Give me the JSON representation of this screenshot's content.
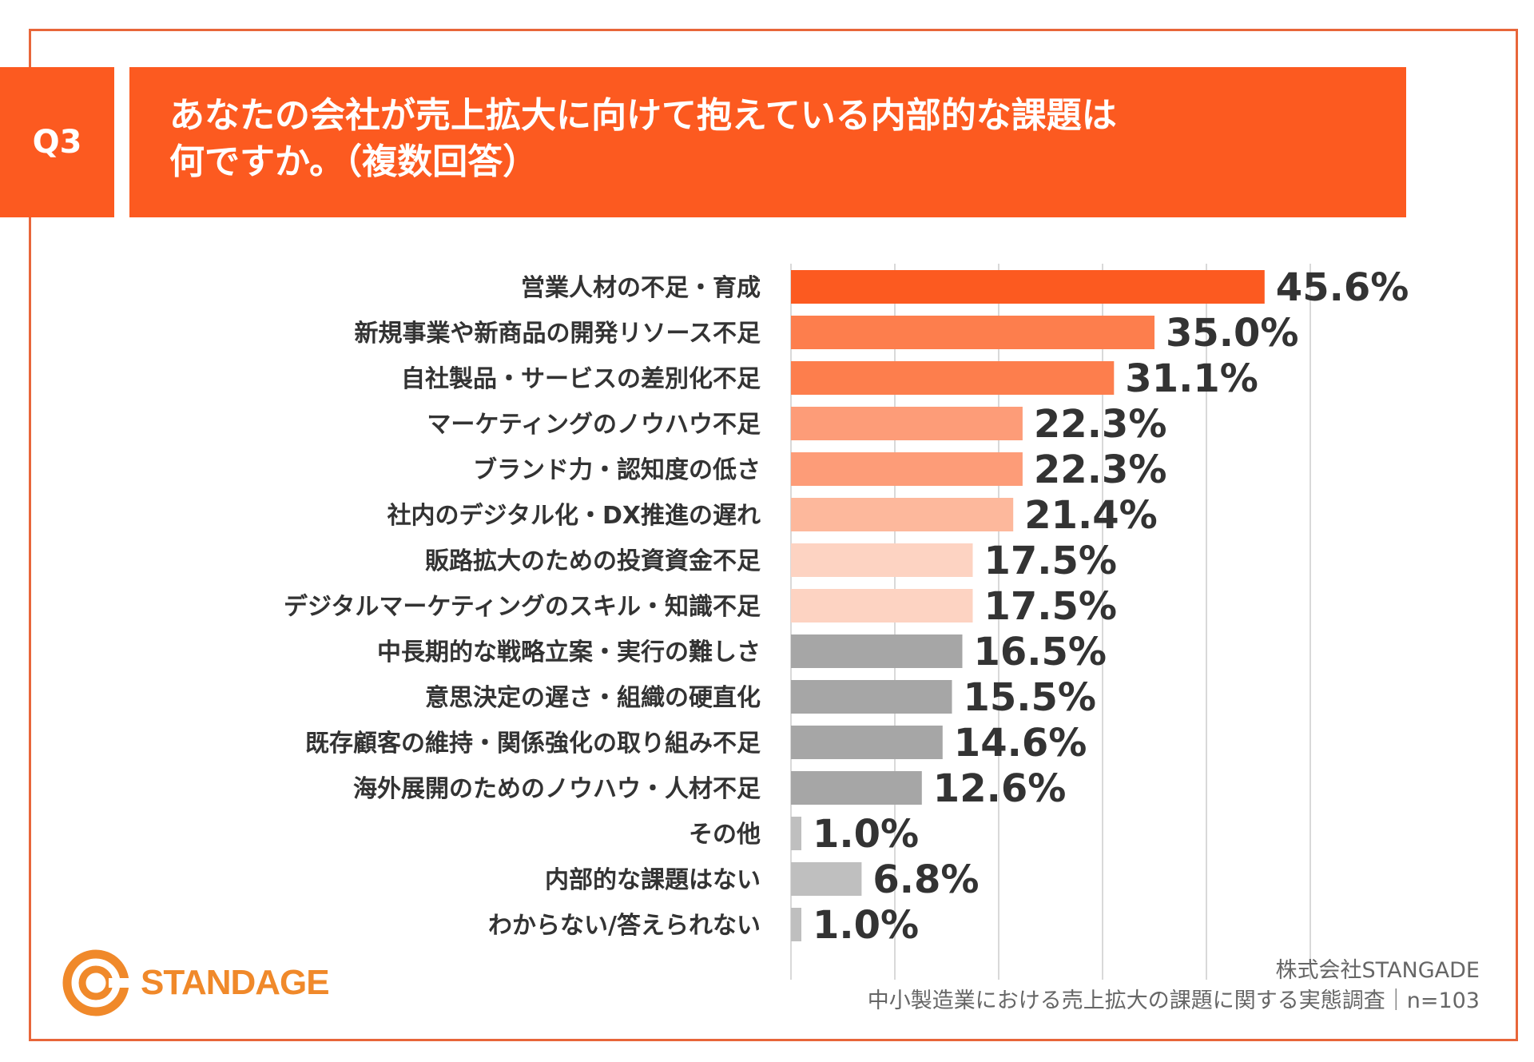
{
  "question": {
    "badge": "Q3",
    "title_line1": "あなたの会社が売上拡大に向けて抱えている内部的な課題は",
    "title_line2": "何ですか。（複数回答）"
  },
  "colors": {
    "accent": "#fc5a20",
    "frame": "#e8663a",
    "logo": "#f0892a"
  },
  "chart_data": {
    "type": "bar",
    "orientation": "horizontal",
    "unit": "%",
    "xlim": [
      0,
      50
    ],
    "grid": true,
    "categories": [
      "営業人材の不足・育成",
      "新規事業や新商品の開発リソース不足",
      "自社製品・サービスの差別化不足",
      "マーケティングのノウハウ不足",
      "ブランド力・認知度の低さ",
      "社内のデジタル化・DX推進の遅れ",
      "販路拡大のための投資資金不足",
      "デジタルマーケティングのスキル・知識不足",
      "中長期的な戦略立案・実行の難しさ",
      "意思決定の遅さ・組織の硬直化",
      "既存顧客の維持・関係強化の取り組み不足",
      "海外展開のためのノウハウ・人材不足",
      "その他",
      "内部的な課題はない",
      "わからない/答えられない"
    ],
    "values": [
      45.6,
      35.0,
      31.1,
      22.3,
      22.3,
      21.4,
      17.5,
      17.5,
      16.5,
      15.5,
      14.6,
      12.6,
      1.0,
      6.8,
      1.0
    ],
    "value_labels": [
      "45.6%",
      "35.0%",
      "31.1%",
      "22.3%",
      "22.3%",
      "21.4%",
      "17.5%",
      "17.5%",
      "16.5%",
      "15.5%",
      "14.6%",
      "12.6%",
      "1.0%",
      "6.8%",
      "1.0%"
    ],
    "bar_colors": [
      "#fc5a20",
      "#fd7e4d",
      "#fd7e4d",
      "#fd9c78",
      "#fd9c78",
      "#fdb89c",
      "#fdd3c2",
      "#fdd3c2",
      "#a6a6a6",
      "#a6a6a6",
      "#a6a6a6",
      "#a6a6a6",
      "#bfbfbf",
      "#bfbfbf",
      "#bfbfbf"
    ]
  },
  "footer": {
    "company": "株式会社STANGADE",
    "survey": "中小製造業における売上拡大の課題に関する実態調査｜n=103",
    "logo_text": "STANDAGE"
  }
}
